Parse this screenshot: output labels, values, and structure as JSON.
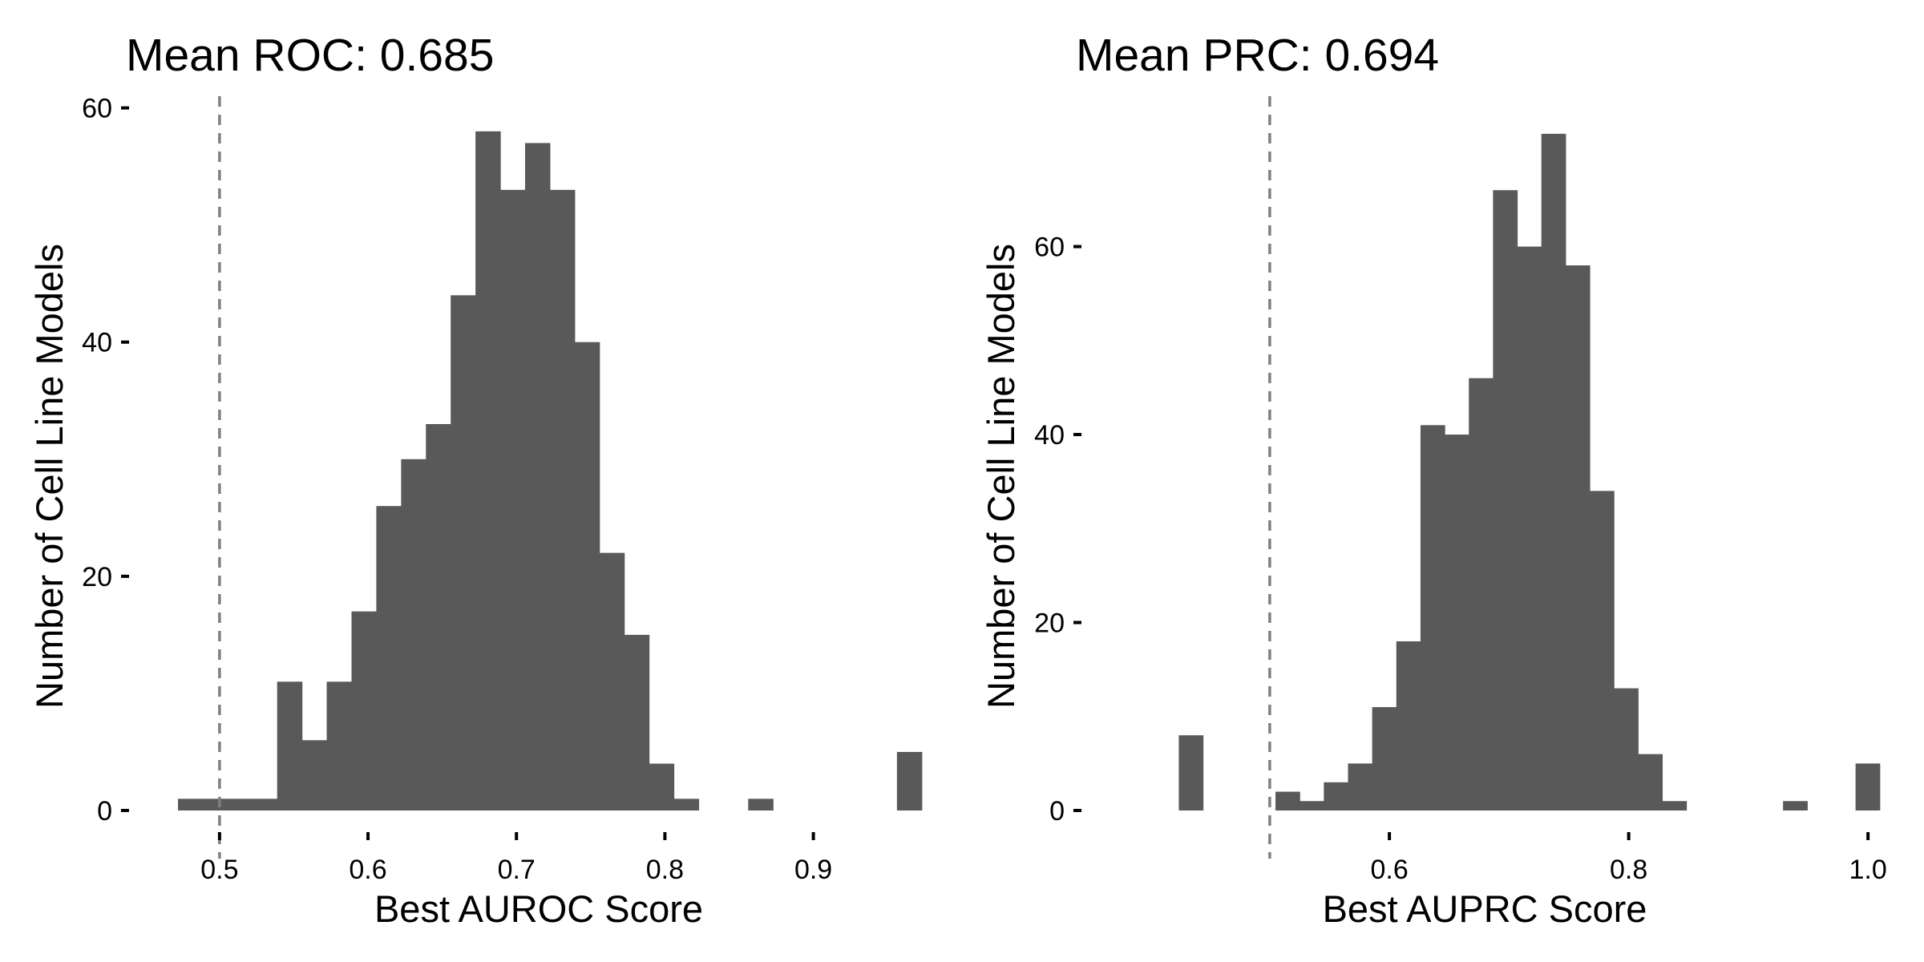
{
  "chart_data": [
    {
      "type": "histogram",
      "title": "Mean ROC: 0.685",
      "xlabel": "Best AUROC Score",
      "ylabel": "Number of Cell Line Models",
      "xlim": [
        0.445,
        0.985
      ],
      "ylim": [
        0,
        61
      ],
      "xticks": [
        0.5,
        0.6,
        0.7,
        0.8,
        0.9
      ],
      "xtick_labels": [
        "0.5",
        "0.6",
        "0.7",
        "0.8",
        "0.9"
      ],
      "yticks": [
        0,
        20,
        40,
        60
      ],
      "ytick_labels": [
        "0",
        "20",
        "40",
        "60"
      ],
      "bin_start": 0.472,
      "bin_width": 0.0167,
      "counts": [
        1,
        1,
        1,
        1,
        11,
        6,
        11,
        17,
        26,
        30,
        33,
        44,
        58,
        53,
        57,
        53,
        40,
        22,
        15,
        4,
        1,
        0,
        0,
        1,
        0,
        0,
        0,
        0,
        0,
        5
      ],
      "reference_line": 0.5,
      "grid": false,
      "bar_color": "#595959",
      "reference_color": "#7f7f7f"
    },
    {
      "type": "histogram",
      "title": "Mean PRC: 0.694",
      "xlabel": "Best AUPRC Score",
      "ylabel": "Number of Cell Line Models",
      "xlim": [
        0.35,
        1.02
      ],
      "ylim": [
        0,
        76
      ],
      "xticks": [
        0.6,
        0.8,
        1.0
      ],
      "xtick_labels": [
        "0.6",
        "0.8",
        "1.0"
      ],
      "yticks": [
        0,
        20,
        40,
        60
      ],
      "ytick_labels": [
        "0",
        "20",
        "40",
        "60"
      ],
      "bin_start": 0.424,
      "bin_width": 0.0202,
      "counts": [
        8,
        0,
        0,
        0,
        2,
        1,
        3,
        5,
        11,
        18,
        41,
        40,
        46,
        66,
        60,
        72,
        58,
        34,
        13,
        6,
        1,
        0,
        0,
        0,
        0,
        1,
        0,
        0,
        5
      ],
      "reference_line": 0.5,
      "grid": false,
      "bar_color": "#595959",
      "reference_color": "#7f7f7f"
    }
  ]
}
